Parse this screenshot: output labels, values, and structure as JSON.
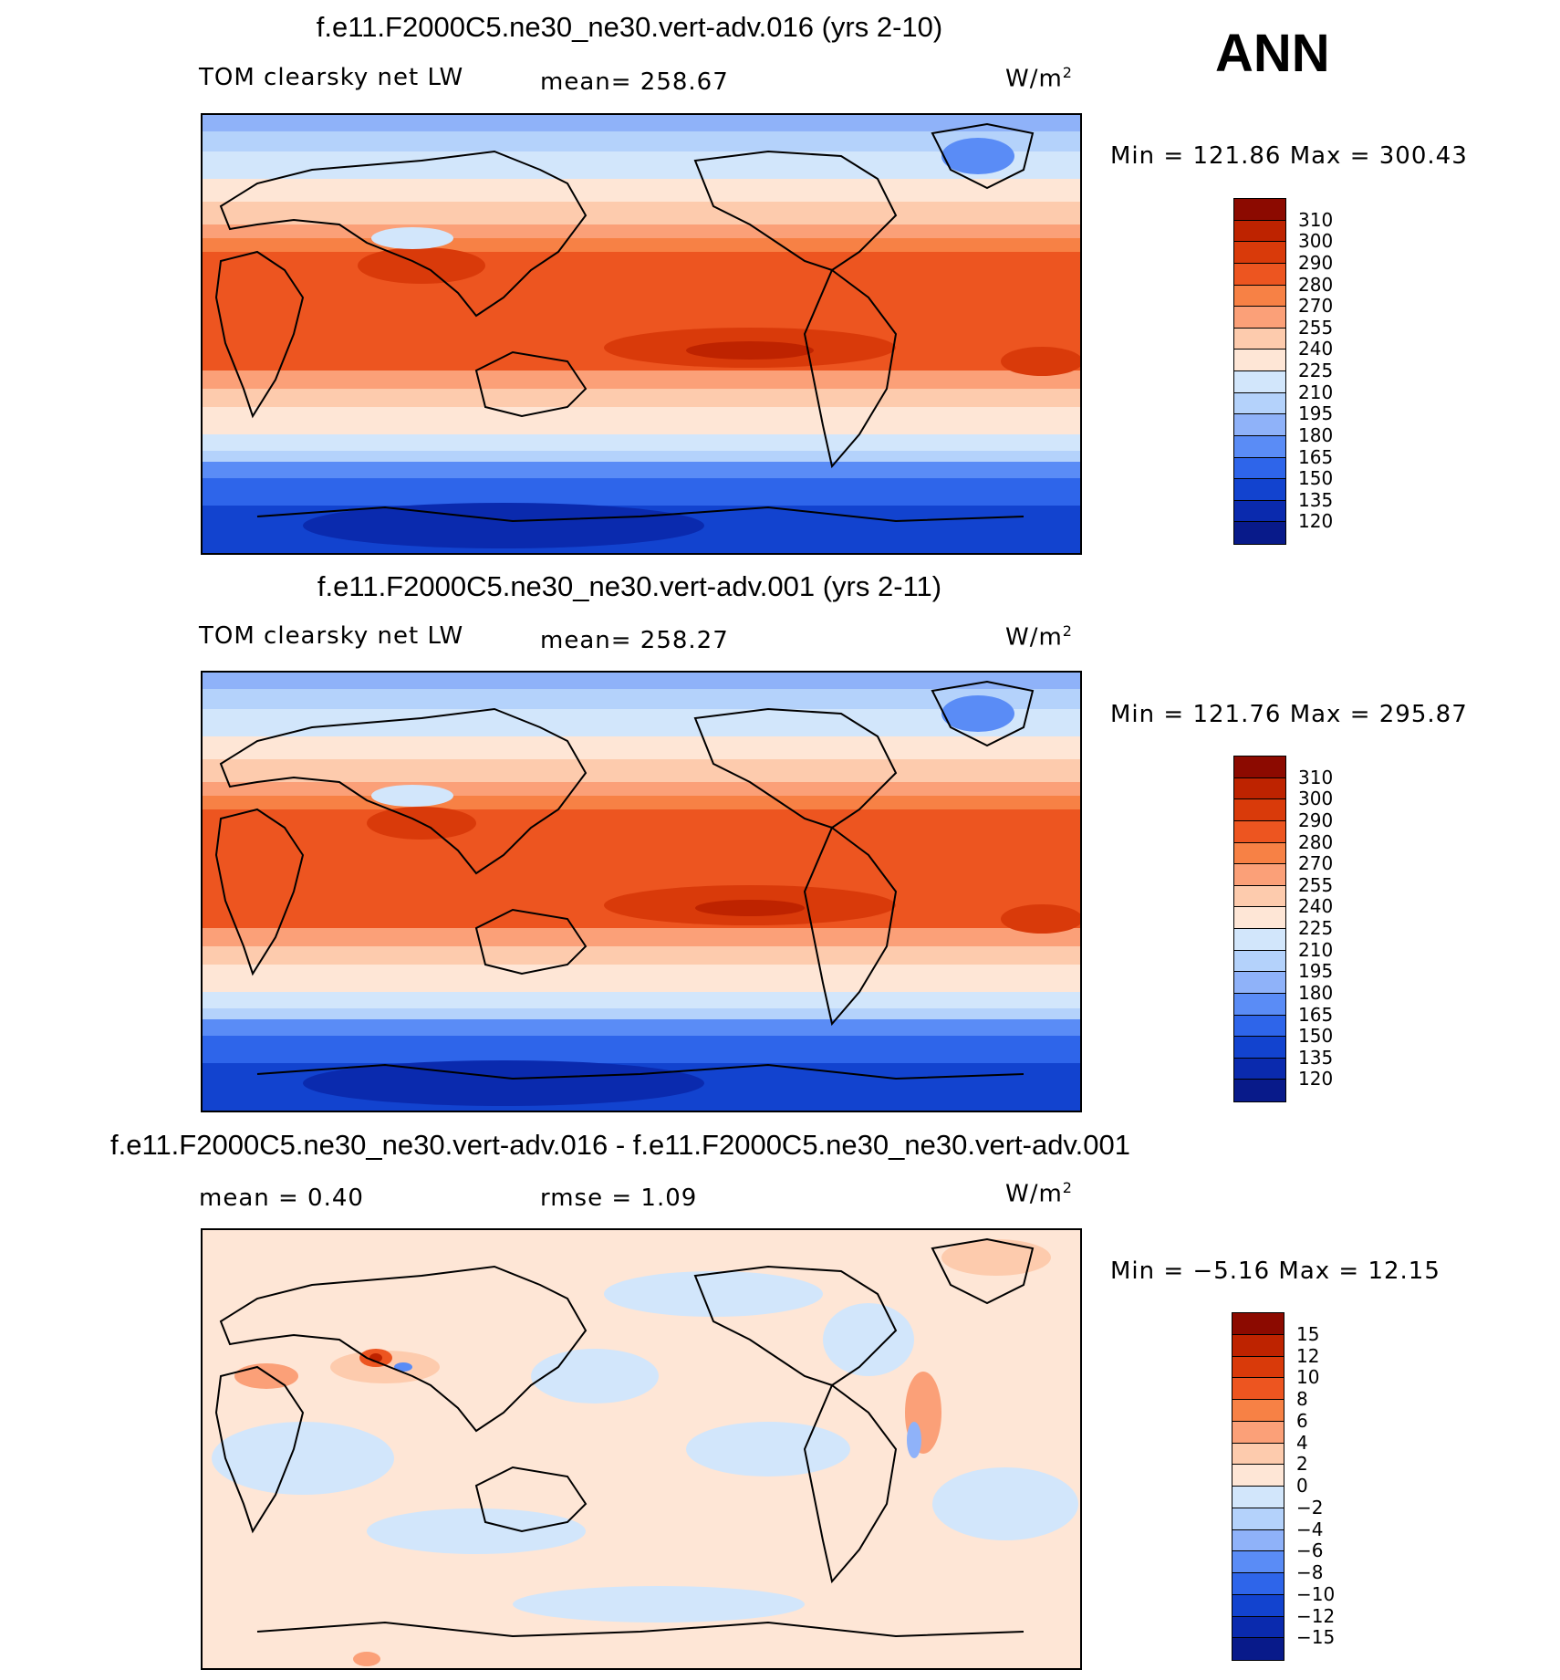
{
  "season": "ANN",
  "panels": [
    {
      "title": "f.e11.F2000C5.ne30_ne30.vert-adv.016 (yrs 2-10)",
      "left_label": "TOM clearsky net LW",
      "center_label": "mean=  258.67",
      "right_label": "",
      "units": "W/m",
      "units_sup": "2",
      "minmax": "Min  =  121.86  Max  =  300.43",
      "kind": "abs"
    },
    {
      "title": "f.e11.F2000C5.ne30_ne30.vert-adv.001 (yrs 2-11)",
      "left_label": "TOM clearsky net LW",
      "center_label": "mean=  258.27",
      "right_label": "",
      "units": "W/m",
      "units_sup": "2",
      "minmax": "Min  =  121.76  Max  =  295.87",
      "kind": "abs"
    },
    {
      "title": "f.e11.F2000C5.ne30_ne30.vert-adv.016 - f.e11.F2000C5.ne30_ne30.vert-adv.001",
      "left_label": "mean  =    0.40",
      "center_label": "rmse  =     1.09",
      "right_label": "",
      "units": "W/m",
      "units_sup": "2",
      "minmax": "Min  =   −5.16  Max  =   12.15",
      "kind": "diff"
    }
  ],
  "colorbars": {
    "abs": {
      "labels": [
        "310",
        "300",
        "290",
        "280",
        "270",
        "255",
        "240",
        "225",
        "210",
        "195",
        "180",
        "165",
        "150",
        "135",
        "120"
      ],
      "colors": [
        "#8c0a00",
        "#be2300",
        "#d93a0a",
        "#ed5520",
        "#f78145",
        "#fba078",
        "#fdcbad",
        "#fee6d6",
        "#d2e6fb",
        "#b4d2fb",
        "#8fb2f9",
        "#5a8cf6",
        "#2e65ea",
        "#1243cf",
        "#0a2aae",
        "#081a8a"
      ]
    },
    "diff": {
      "labels": [
        "15",
        "12",
        "10",
        "8",
        "6",
        "4",
        "2",
        "0",
        "−2",
        "−4",
        "−6",
        "−8",
        "−10",
        "−12",
        "−15"
      ],
      "colors": [
        "#8c0a00",
        "#be2300",
        "#d93a0a",
        "#ed5520",
        "#f78145",
        "#fba078",
        "#fdcbad",
        "#fee6d6",
        "#d2e6fb",
        "#b4d2fb",
        "#8fb2f9",
        "#5a8cf6",
        "#2e65ea",
        "#1243cf",
        "#0a2aae",
        "#081a8a"
      ]
    }
  }
}
